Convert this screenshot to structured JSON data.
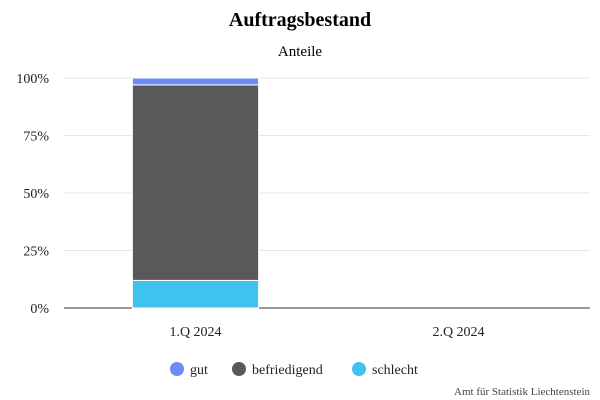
{
  "chart_data": {
    "type": "bar",
    "stacked": true,
    "title": "Auftragsbestand",
    "subtitle": "Anteile",
    "categories": [
      "1.Q 2024",
      "2.Q 2024"
    ],
    "series": [
      {
        "name": "gut",
        "color": "#6b8cf7",
        "values": [
          3,
          null
        ]
      },
      {
        "name": "befriedigend",
        "color": "#595959",
        "values": [
          85,
          null
        ]
      },
      {
        "name": "schlecht",
        "color": "#3fc3ee",
        "values": [
          12,
          null
        ]
      }
    ],
    "ylim": [
      0,
      100
    ],
    "yticks": [
      "0%",
      "25%",
      "50%",
      "75%",
      "100%"
    ],
    "ytick_values": [
      0,
      25,
      50,
      75,
      100
    ],
    "grid": true,
    "legend_position": "bottom",
    "credit": "Amt für Statistik Liechtenstein"
  }
}
